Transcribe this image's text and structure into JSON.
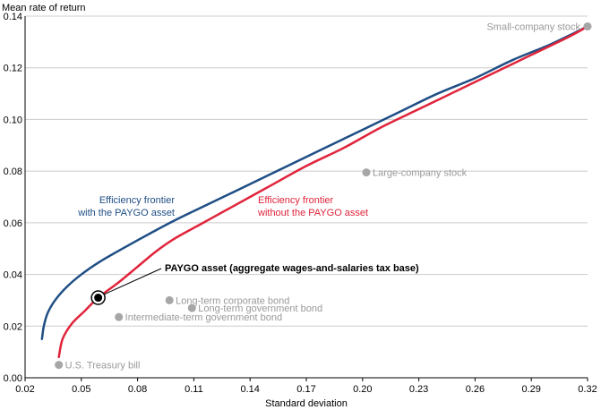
{
  "chart_data": {
    "type": "scatter",
    "title": "",
    "ylabel": "Mean rate of return",
    "xlabel": "Standard deviation",
    "xlim": [
      0.02,
      0.32
    ],
    "ylim": [
      0.0,
      0.14
    ],
    "x_ticks": [
      0.02,
      0.05,
      0.08,
      0.11,
      0.14,
      0.17,
      0.2,
      0.23,
      0.26,
      0.29,
      0.32
    ],
    "x_tick_labels": [
      "0.02",
      "0.05",
      "0.08",
      "0.11",
      "0.14",
      "0.17",
      "0.20",
      "0.23",
      "0.26",
      "0.29",
      "0.32"
    ],
    "y_ticks": [
      0.0,
      0.02,
      0.04,
      0.06,
      0.08,
      0.1,
      0.12,
      0.14
    ],
    "y_tick_labels": [
      "0.00",
      "0.02",
      "0.04",
      "0.06",
      "0.08",
      "0.10",
      "0.12",
      "0.14"
    ],
    "grid": "horizontal",
    "assets": [
      {
        "name": "U.S. Treasury bill",
        "x": 0.038,
        "y": 0.005
      },
      {
        "name": "Intermediate-term government bond",
        "x": 0.07,
        "y": 0.0235
      },
      {
        "name": "Long-term corporate bond",
        "x": 0.097,
        "y": 0.03
      },
      {
        "name": "Long-term government bond",
        "x": 0.109,
        "y": 0.027
      },
      {
        "name": "Large-company stock",
        "x": 0.202,
        "y": 0.0795
      },
      {
        "name": "Small-company stock",
        "x": 0.32,
        "y": 0.136
      }
    ],
    "paygo_asset": {
      "name": "PAYGO asset (aggregate wages-and-salaries tax base)",
      "x": 0.059,
      "y": 0.031
    },
    "series": [
      {
        "name": "Efficiency frontier with the PAYGO asset",
        "label_lines": [
          "Efficiency frontier",
          "with the PAYGO asset"
        ],
        "color": "#1f4e85",
        "points": [
          [
            0.029,
            0.015
          ],
          [
            0.03,
            0.02
          ],
          [
            0.032,
            0.025
          ],
          [
            0.036,
            0.03
          ],
          [
            0.042,
            0.035
          ],
          [
            0.05,
            0.04
          ],
          [
            0.06,
            0.045
          ],
          [
            0.072,
            0.05
          ],
          [
            0.087,
            0.056
          ],
          [
            0.1,
            0.061
          ],
          [
            0.12,
            0.068
          ],
          [
            0.14,
            0.075
          ],
          [
            0.16,
            0.082
          ],
          [
            0.18,
            0.089
          ],
          [
            0.2,
            0.096
          ],
          [
            0.22,
            0.103
          ],
          [
            0.24,
            0.11
          ],
          [
            0.26,
            0.116
          ],
          [
            0.28,
            0.123
          ],
          [
            0.3,
            0.129
          ],
          [
            0.32,
            0.136
          ]
        ]
      },
      {
        "name": "Efficiency frontier without the PAYGO asset",
        "label_lines": [
          "Efficiency frontier",
          "without the PAYGO asset"
        ],
        "color": "#e0243b",
        "points": [
          [
            0.038,
            0.008
          ],
          [
            0.04,
            0.015
          ],
          [
            0.045,
            0.021
          ],
          [
            0.052,
            0.026
          ],
          [
            0.059,
            0.031
          ],
          [
            0.07,
            0.037
          ],
          [
            0.08,
            0.043
          ],
          [
            0.09,
            0.049
          ],
          [
            0.1,
            0.054
          ],
          [
            0.115,
            0.06
          ],
          [
            0.13,
            0.066
          ],
          [
            0.15,
            0.074
          ],
          [
            0.17,
            0.082
          ],
          [
            0.19,
            0.089
          ],
          [
            0.21,
            0.097
          ],
          [
            0.23,
            0.104
          ],
          [
            0.25,
            0.111
          ],
          [
            0.27,
            0.118
          ],
          [
            0.29,
            0.125
          ],
          [
            0.31,
            0.132
          ],
          [
            0.32,
            0.136
          ]
        ]
      }
    ]
  }
}
